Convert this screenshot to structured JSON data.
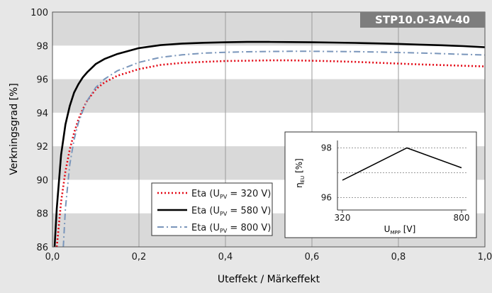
{
  "chart_data": {
    "type": "line",
    "badge": "STP10.0-3AV-40",
    "xlabel": "Uteffekt / Märkeffekt",
    "ylabel": "Verkningsgrad [%]",
    "xlim": [
      0,
      1
    ],
    "ylim": [
      86,
      100
    ],
    "x_ticks": [
      "0,0",
      "0,2",
      "0,4",
      "0,6",
      "0,8",
      "1,0"
    ],
    "y_ticks": [
      "86",
      "88",
      "90",
      "92",
      "94",
      "96",
      "98",
      "100"
    ],
    "grid": true,
    "legend_position": "bottom-center",
    "series": [
      {
        "name": "Eta (U",
        "sub": "PV",
        "suffix": " = 320 V)",
        "color": "#e30613",
        "style": "dotted",
        "x": [
          0.01,
          0.02,
          0.03,
          0.04,
          0.05,
          0.06,
          0.07,
          0.08,
          0.1,
          0.12,
          0.15,
          0.2,
          0.25,
          0.3,
          0.35,
          0.4,
          0.45,
          0.5,
          0.55,
          0.6,
          0.65,
          0.7,
          0.75,
          0.8,
          0.85,
          0.9,
          0.95,
          1.0
        ],
        "y": [
          86.0,
          88.7,
          90.5,
          91.8,
          92.8,
          93.6,
          94.2,
          94.7,
          95.4,
          95.8,
          96.2,
          96.6,
          96.85,
          96.97,
          97.03,
          97.08,
          97.1,
          97.12,
          97.12,
          97.1,
          97.07,
          97.03,
          96.98,
          96.93,
          96.88,
          96.84,
          96.8,
          96.76
        ]
      },
      {
        "name": "Eta (U",
        "sub": "PV",
        "suffix": " = 580 V)",
        "color": "#000000",
        "style": "solid",
        "x": [
          0.005,
          0.01,
          0.02,
          0.03,
          0.04,
          0.05,
          0.06,
          0.07,
          0.08,
          0.1,
          0.12,
          0.15,
          0.2,
          0.25,
          0.3,
          0.35,
          0.4,
          0.45,
          0.5,
          0.55,
          0.6,
          0.65,
          0.7,
          0.75,
          0.8,
          0.85,
          0.9,
          0.95,
          1.0
        ],
        "y": [
          86.0,
          88.3,
          91.5,
          93.3,
          94.4,
          95.2,
          95.7,
          96.1,
          96.4,
          96.9,
          97.2,
          97.5,
          97.85,
          98.03,
          98.12,
          98.17,
          98.2,
          98.22,
          98.22,
          98.21,
          98.2,
          98.18,
          98.16,
          98.13,
          98.1,
          98.06,
          98.02,
          97.97,
          97.9
        ]
      },
      {
        "name": "Eta (U",
        "sub": "PV",
        "suffix": " = 800 V)",
        "color": "#7a96bb",
        "style": "dashdot",
        "x": [
          0.025,
          0.03,
          0.04,
          0.05,
          0.06,
          0.07,
          0.08,
          0.1,
          0.12,
          0.15,
          0.2,
          0.25,
          0.3,
          0.35,
          0.4,
          0.45,
          0.5,
          0.55,
          0.6,
          0.65,
          0.7,
          0.75,
          0.8,
          0.85,
          0.9,
          0.95,
          1.0
        ],
        "y": [
          86.0,
          88.3,
          90.9,
          92.4,
          93.4,
          94.1,
          94.7,
          95.5,
          96.0,
          96.5,
          97.0,
          97.3,
          97.45,
          97.55,
          97.6,
          97.63,
          97.65,
          97.66,
          97.66,
          97.65,
          97.64,
          97.62,
          97.59,
          97.56,
          97.52,
          97.48,
          97.44
        ]
      }
    ],
    "inset": {
      "type": "line",
      "ylabel": "η",
      "ylabel_sub": "EU",
      "ylabel_suffix": " [%]",
      "xlabel": "U",
      "xlabel_sub": "MPP",
      "xlabel_suffix": " [V]",
      "xlim": [
        300,
        820
      ],
      "ylim": [
        95.5,
        98.3
      ],
      "x_ticks": [
        "320",
        "800"
      ],
      "y_ticks": [
        "96",
        "98"
      ],
      "x": [
        320,
        580,
        800
      ],
      "y": [
        96.7,
        98.0,
        97.2
      ],
      "color": "#000000"
    }
  }
}
